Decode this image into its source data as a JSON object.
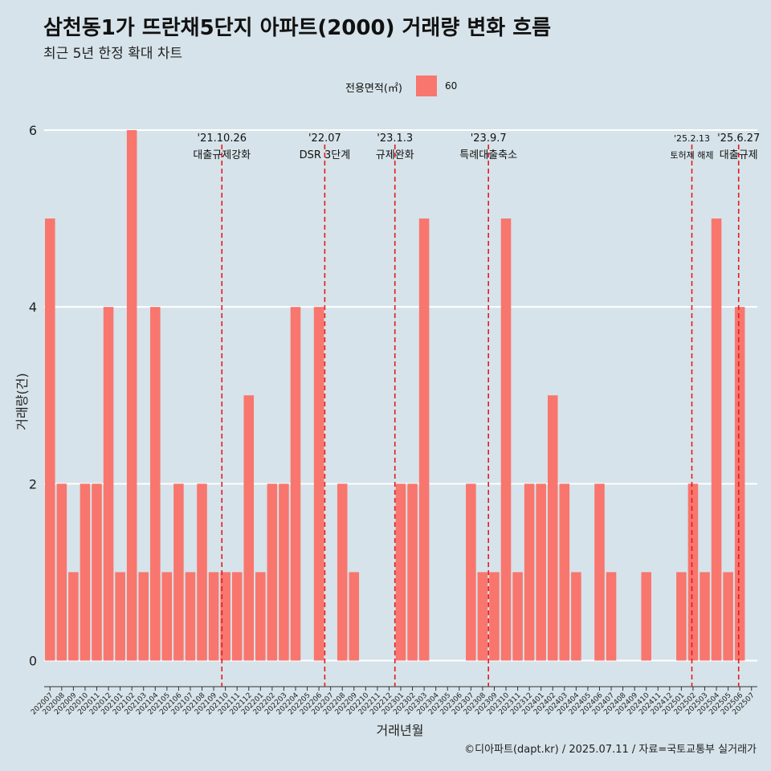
{
  "title": "삼천동1가 뜨란채5단지 아파트(2000) 거래량 변화 흐름",
  "subtitle": "최근 5년 한정 확대 차트",
  "caption": "©디아파트(dapt.kr) / 2025.07.11 / 자료=국토교통부 실거래가",
  "colors": {
    "background": "#d6e3ea",
    "bar": "#f8766d",
    "event_line": "#e41a1c",
    "grid": "#ffffff"
  },
  "legend": {
    "title": "전용면적(㎡)",
    "items": [
      {
        "label": "60",
        "color": "#f8766d"
      }
    ]
  },
  "chart_data": {
    "type": "bar",
    "xlabel": "거래년월",
    "ylabel": "거래량(건)",
    "ylim": [
      -0.25,
      6.2
    ],
    "yticks": [
      0,
      2,
      4,
      6
    ],
    "grid": true,
    "legend_position": "top",
    "categories": [
      "202007",
      "202008",
      "202009",
      "202010",
      "202011",
      "202012",
      "202101",
      "202102",
      "202103",
      "202104",
      "202105",
      "202106",
      "202107",
      "202108",
      "202109",
      "202110",
      "202111",
      "202112",
      "202201",
      "202202",
      "202203",
      "202204",
      "202205",
      "202206",
      "202207",
      "202208",
      "202209",
      "202210",
      "202211",
      "202212",
      "202301",
      "202302",
      "202303",
      "202304",
      "202305",
      "202306",
      "202307",
      "202308",
      "202309",
      "202310",
      "202311",
      "202312",
      "202401",
      "202402",
      "202403",
      "202404",
      "202405",
      "202406",
      "202407",
      "202408",
      "202409",
      "202410",
      "202411",
      "202412",
      "202501",
      "202502",
      "202503",
      "202504",
      "202505",
      "202506",
      "202507"
    ],
    "series": [
      {
        "name": "60",
        "values": [
          5,
          2,
          1,
          2,
          2,
          4,
          1,
          6,
          1,
          4,
          1,
          2,
          1,
          2,
          1,
          1,
          1,
          3,
          1,
          2,
          2,
          4,
          0,
          4,
          0,
          2,
          1,
          0,
          0,
          0,
          2,
          2,
          5,
          0,
          0,
          0,
          2,
          1,
          1,
          5,
          1,
          2,
          2,
          3,
          2,
          1,
          0,
          2,
          1,
          0,
          0,
          1,
          0,
          0,
          1,
          2,
          1,
          5,
          1,
          4,
          0
        ]
      }
    ],
    "events": [
      {
        "date": "'21.10.26",
        "label": "대출규제강화",
        "position": 15.2
      },
      {
        "date": "'22.07",
        "label": "DSR 3단계",
        "position": 24
      },
      {
        "date": "'23.1.3",
        "label": "규제완화",
        "position": 30
      },
      {
        "date": "'23.9.7",
        "label": "특례대출축소",
        "position": 38
      },
      {
        "date": "'25.2.13",
        "label": "토허제 해제",
        "position": 55.4
      },
      {
        "date": "'25.6.27",
        "label": "대출규제",
        "position": 59.4
      }
    ]
  }
}
